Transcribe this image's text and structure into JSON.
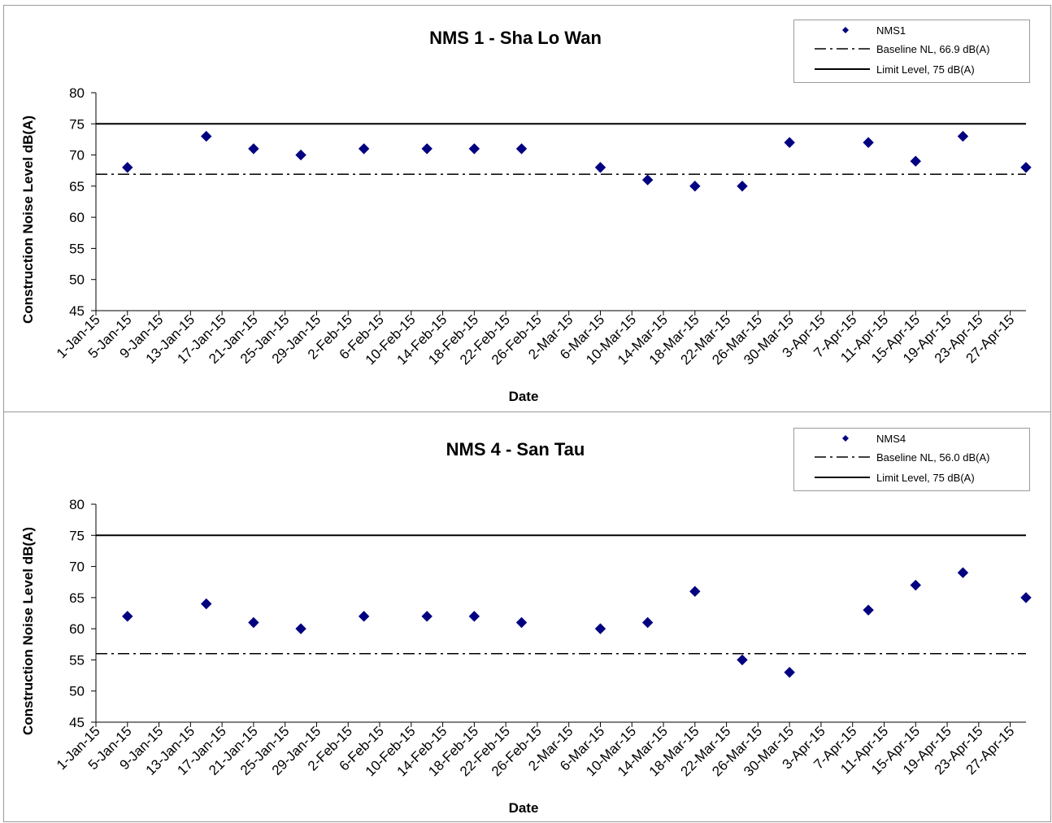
{
  "chart_data": [
    {
      "type": "scatter",
      "title": "NMS 1 - Sha Lo Wan",
      "xlabel": "Date",
      "ylabel": "Construction Noise Level  dB(A)",
      "ylim": [
        45,
        80
      ],
      "yticks": [
        "45",
        "50",
        "55",
        "60",
        "65",
        "70",
        "75",
        "80"
      ],
      "xlim": [
        "1-Jan-15",
        "29-Apr-15"
      ],
      "xticks": [
        "1-Jan-15",
        "5-Jan-15",
        "9-Jan-15",
        "13-Jan-15",
        "17-Jan-15",
        "21-Jan-15",
        "25-Jan-15",
        "29-Jan-15",
        "2-Feb-15",
        "6-Feb-15",
        "10-Feb-15",
        "14-Feb-15",
        "18-Feb-15",
        "22-Feb-15",
        "26-Feb-15",
        "2-Mar-15",
        "6-Mar-15",
        "10-Mar-15",
        "14-Mar-15",
        "18-Mar-15",
        "22-Mar-15",
        "26-Mar-15",
        "30-Mar-15",
        "3-Apr-15",
        "7-Apr-15",
        "11-Apr-15",
        "15-Apr-15",
        "19-Apr-15",
        "23-Apr-15",
        "27-Apr-15"
      ],
      "legend_position": "top-right",
      "series": [
        {
          "name": "NMS1",
          "color": "#000080",
          "marker": "diamond",
          "x": [
            "5-Jan-15",
            "15-Jan-15",
            "21-Jan-15",
            "27-Jan-15",
            "4-Feb-15",
            "12-Feb-15",
            "18-Feb-15",
            "24-Feb-15",
            "6-Mar-15",
            "12-Mar-15",
            "18-Mar-15",
            "24-Mar-15",
            "30-Mar-15",
            "9-Apr-15",
            "15-Apr-15",
            "21-Apr-15",
            "29-Apr-15"
          ],
          "y": [
            68,
            73,
            71,
            70,
            71,
            71,
            71,
            71,
            68,
            66,
            65,
            65,
            72,
            72,
            69,
            73,
            68
          ]
        }
      ],
      "reference_lines": [
        {
          "name": "Baseline NL, 66.9 dB(A)",
          "value": 66.9,
          "style": "dash-dot"
        },
        {
          "name": "Limit Level, 75 dB(A)",
          "value": 75,
          "style": "solid"
        }
      ]
    },
    {
      "type": "scatter",
      "title": "NMS 4 - San Tau",
      "xlabel": "Date",
      "ylabel": "Construction Noise Level  dB(A)",
      "ylim": [
        45,
        80
      ],
      "yticks": [
        "45",
        "50",
        "55",
        "60",
        "65",
        "70",
        "75",
        "80"
      ],
      "xlim": [
        "1-Jan-15",
        "29-Apr-15"
      ],
      "xticks": [
        "1-Jan-15",
        "5-Jan-15",
        "9-Jan-15",
        "13-Jan-15",
        "17-Jan-15",
        "21-Jan-15",
        "25-Jan-15",
        "29-Jan-15",
        "2-Feb-15",
        "6-Feb-15",
        "10-Feb-15",
        "14-Feb-15",
        "18-Feb-15",
        "22-Feb-15",
        "26-Feb-15",
        "2-Mar-15",
        "6-Mar-15",
        "10-Mar-15",
        "14-Mar-15",
        "18-Mar-15",
        "22-Mar-15",
        "26-Mar-15",
        "30-Mar-15",
        "3-Apr-15",
        "7-Apr-15",
        "11-Apr-15",
        "15-Apr-15",
        "19-Apr-15",
        "23-Apr-15",
        "27-Apr-15"
      ],
      "legend_position": "top-right",
      "series": [
        {
          "name": "NMS4",
          "color": "#000080",
          "marker": "diamond",
          "x": [
            "5-Jan-15",
            "15-Jan-15",
            "21-Jan-15",
            "27-Jan-15",
            "4-Feb-15",
            "12-Feb-15",
            "18-Feb-15",
            "24-Feb-15",
            "6-Mar-15",
            "12-Mar-15",
            "18-Mar-15",
            "24-Mar-15",
            "30-Mar-15",
            "9-Apr-15",
            "15-Apr-15",
            "21-Apr-15",
            "29-Apr-15"
          ],
          "y": [
            62,
            64,
            61,
            60,
            62,
            62,
            62,
            61,
            60,
            61,
            66,
            55,
            53,
            63,
            67,
            69,
            65
          ]
        }
      ],
      "reference_lines": [
        {
          "name": "Baseline NL, 56.0 dB(A)",
          "value": 56.0,
          "style": "dash-dot"
        },
        {
          "name": "Limit Level, 75 dB(A)",
          "value": 75,
          "style": "solid"
        }
      ]
    }
  ]
}
